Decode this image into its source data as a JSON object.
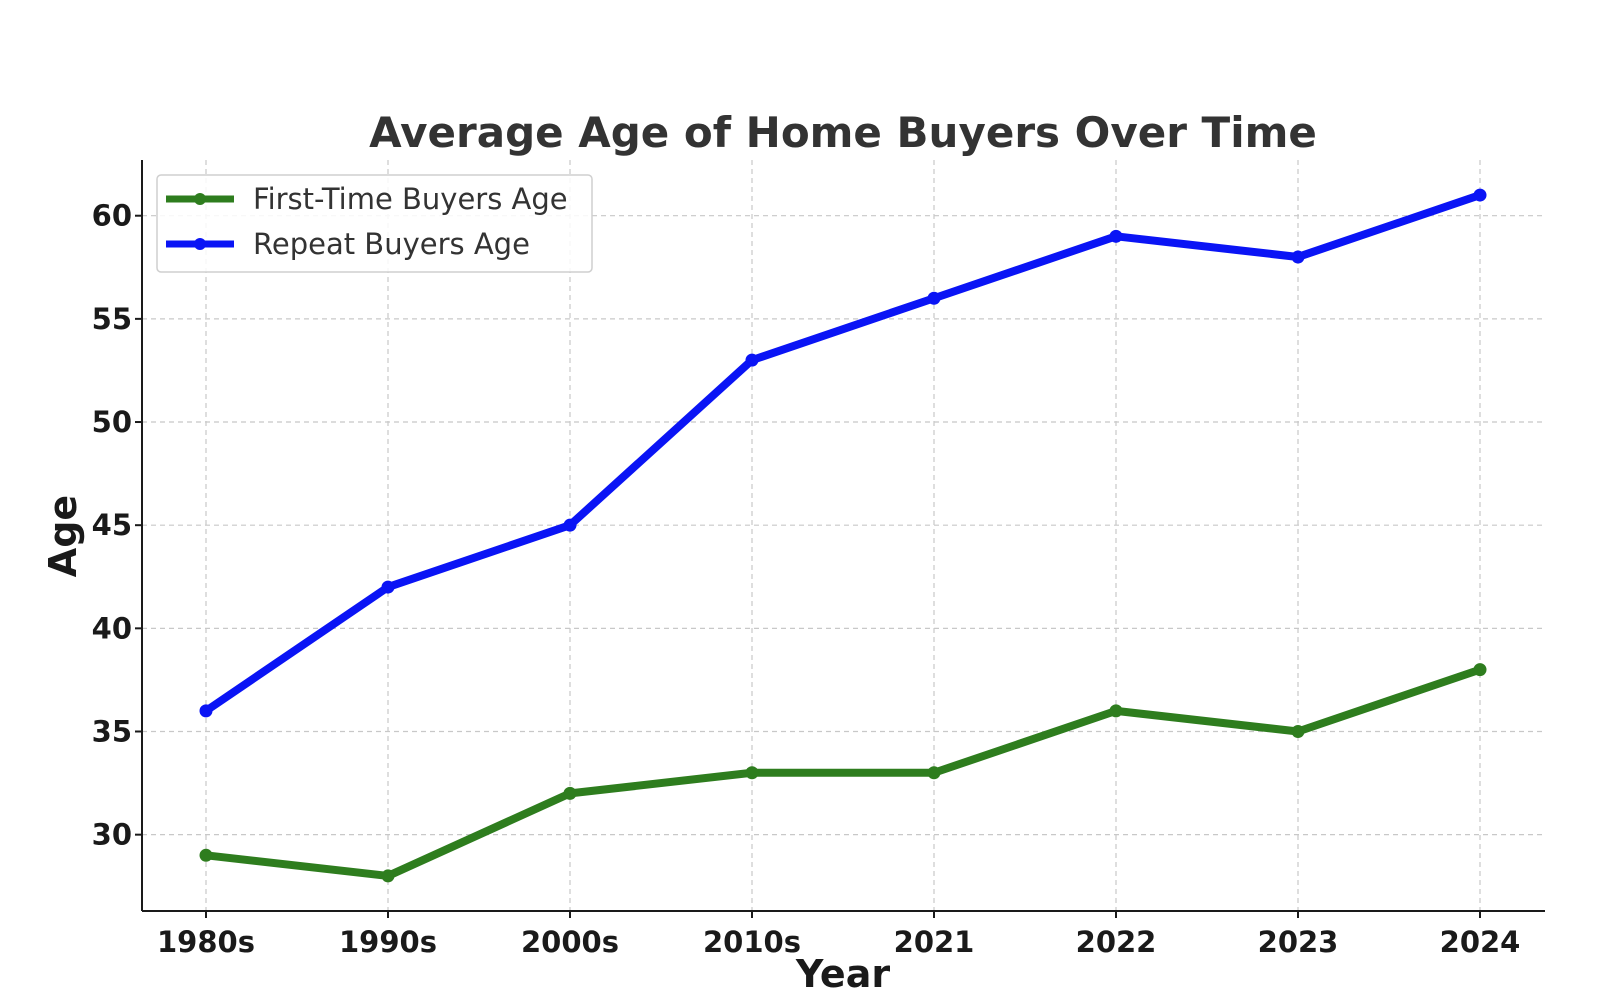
{
  "chart_data": {
    "type": "line",
    "title": "Average Age of Home Buyers Over Time",
    "xlabel": "Year",
    "ylabel": "Age",
    "categories": [
      "1980s",
      "1990s",
      "2000s",
      "2010s",
      "2021",
      "2022",
      "2023",
      "2024"
    ],
    "ylim": [
      26.3,
      62.7
    ],
    "yticks": [
      30,
      35,
      40,
      45,
      50,
      55,
      60
    ],
    "grid": true,
    "legend_position": "top-left",
    "series": [
      {
        "name": "First-Time Buyers Age",
        "color": "#2e7d1e",
        "values": [
          29,
          28,
          32,
          33,
          33,
          36,
          35,
          38
        ]
      },
      {
        "name": "Repeat Buyers Age",
        "color": "#0a14f5",
        "values": [
          36,
          42,
          45,
          53,
          56,
          59,
          58,
          61
        ]
      }
    ]
  }
}
